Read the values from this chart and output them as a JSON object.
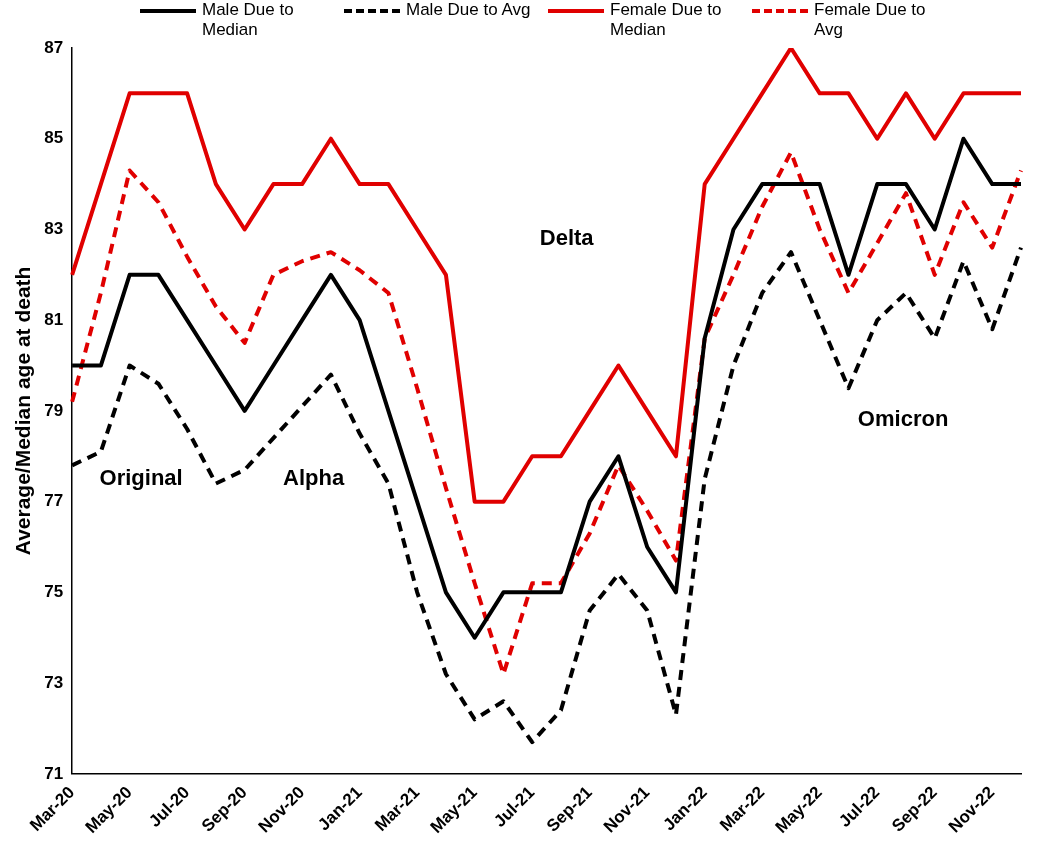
{
  "chart_data": {
    "type": "line",
    "ylabel": "Average/Median age at death",
    "categories": [
      "Mar-20",
      null,
      "May-20",
      null,
      "Jul-20",
      null,
      "Sep-20",
      null,
      "Nov-20",
      null,
      "Jan-21",
      null,
      "Mar-21",
      null,
      "May-21",
      null,
      "Jul-21",
      null,
      "Sep-21",
      null,
      "Nov-21",
      null,
      "Jan-22",
      null,
      "Mar-22",
      null,
      "May-22",
      null,
      "Jul-22",
      null,
      "Sep-22",
      null,
      "Nov-22",
      null
    ],
    "series": [
      {
        "name": "Male Due to Median",
        "color": "#000000",
        "line_style": "solid",
        "values": [
          80,
          80,
          82,
          82,
          81,
          80,
          79,
          80,
          81,
          82,
          81,
          79,
          77,
          75,
          74,
          75,
          75,
          75,
          77,
          78,
          76,
          75,
          80.6,
          83,
          84,
          84,
          84,
          82,
          84,
          84,
          83,
          85,
          84,
          84
        ]
      },
      {
        "name": "Male Due to Avg",
        "color": "#000000",
        "line_style": "dashed",
        "values": [
          77.8,
          78.1,
          80,
          79.6,
          78.6,
          77.4,
          77.7,
          78.4,
          79.1,
          79.8,
          78.5,
          77.4,
          75,
          73.2,
          72.2,
          72.6,
          71.7,
          72.4,
          74.6,
          75.4,
          74.6,
          72.3,
          77.5,
          80,
          81.6,
          82.5,
          81,
          79.5,
          81,
          81.6,
          80.6,
          82.3,
          80.8,
          82.6
        ]
      },
      {
        "name": "Female Due to Median",
        "color": "#e00000",
        "line_style": "solid",
        "values": [
          82,
          84,
          86,
          86,
          86,
          84,
          83,
          84,
          84,
          85,
          84,
          84,
          83,
          82,
          77,
          77,
          78,
          78,
          79,
          80,
          79,
          78,
          84,
          85,
          86,
          87,
          86,
          86,
          85,
          86,
          85,
          86,
          86,
          86
        ]
      },
      {
        "name": "Female Due to Avg",
        "color": "#e00000",
        "line_style": "dashed",
        "values": [
          79.2,
          81.6,
          84.3,
          83.6,
          82.4,
          81.3,
          80.5,
          82,
          82.3,
          82.5,
          82.1,
          81.6,
          79.5,
          77.3,
          75.2,
          73.2,
          75.2,
          75.2,
          76.3,
          77.8,
          76.8,
          75.7,
          80.6,
          82,
          83.5,
          84.7,
          83,
          81.6,
          82.7,
          83.8,
          82,
          83.6,
          82.6,
          84.3
        ]
      }
    ],
    "ylim": [
      71,
      87
    ],
    "yticks": [
      71,
      73,
      75,
      77,
      79,
      81,
      83,
      85,
      87
    ],
    "grid": false,
    "legend": "top",
    "marker": "none",
    "annotations": [
      "Original",
      "Alpha",
      "Delta",
      "Omicron"
    ]
  }
}
